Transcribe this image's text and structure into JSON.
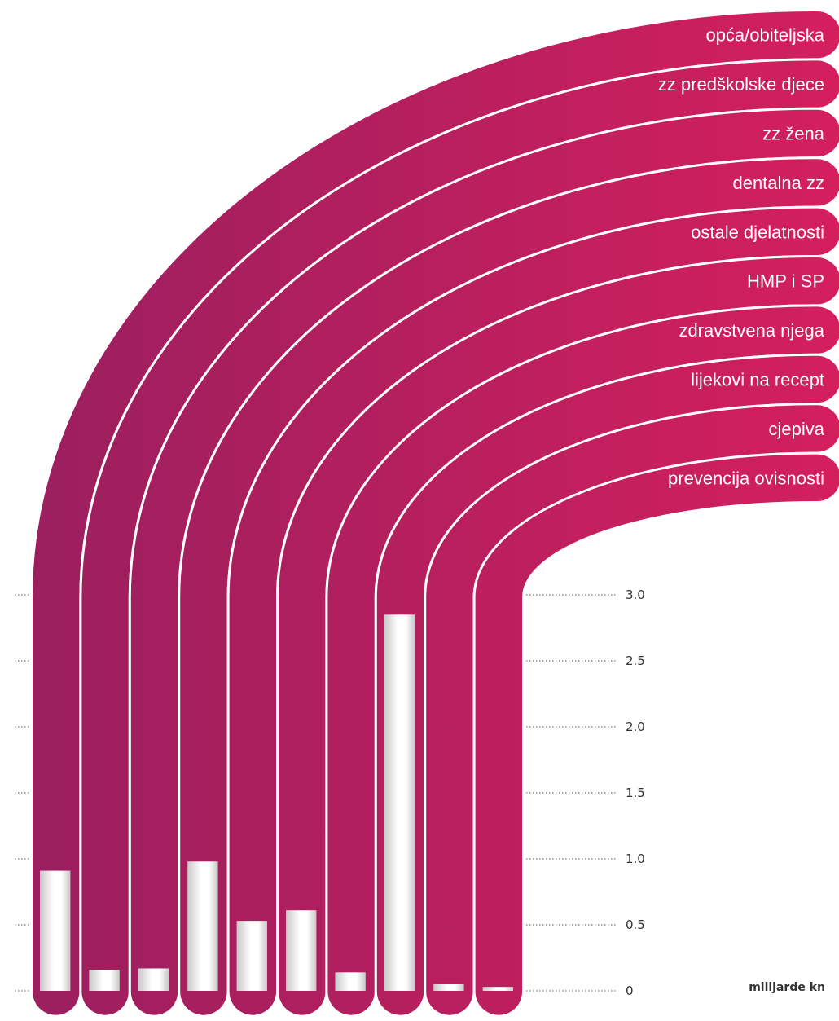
{
  "chart_data": {
    "type": "bar",
    "categories": [
      "opća/obiteljska",
      "zz predškolske djece",
      "zz žena",
      "dentalna zz",
      "ostale djelatnosti",
      "HMP i SP",
      "zdravstvena njega",
      "lijekovi na recept",
      "cjepiva",
      "prevencija ovisnosti"
    ],
    "values": [
      0.91,
      0.16,
      0.17,
      0.98,
      0.53,
      0.61,
      0.14,
      2.85,
      0.05,
      0.03
    ],
    "ylim": [
      0,
      3.0
    ],
    "yticks": [
      "0",
      "0.5",
      "1.0",
      "1.5",
      "2.0",
      "2.5",
      "3.0"
    ],
    "unit_label": "milijarde kn",
    "grid": true,
    "colors": {
      "band_start": "#9b1f5f",
      "band_end": "#d41f5d",
      "separator": "#ffffff",
      "bar_light": "#ffffff",
      "bar_shade": "#c8c8c8"
    }
  }
}
